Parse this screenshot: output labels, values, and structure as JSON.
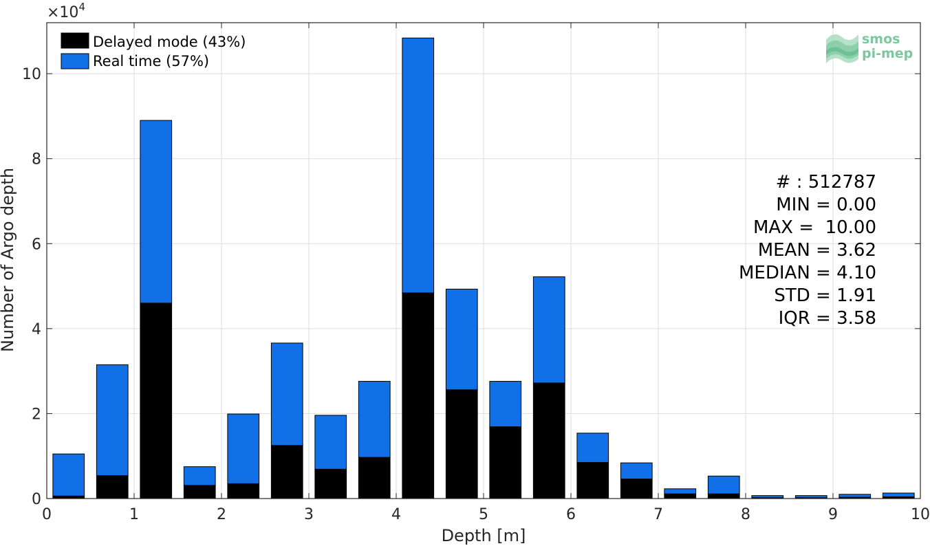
{
  "chart_data": {
    "type": "bar",
    "stacked": true,
    "xlabel": "Depth [m]",
    "ylabel": "Number of Argo depth",
    "xlim": [
      0,
      10
    ],
    "ylim": [
      0,
      11.2
    ],
    "y_multiplier": "×10",
    "y_multiplier_exp": "4",
    "x_ticks": [
      "0",
      "1",
      "2",
      "3",
      "4",
      "5",
      "6",
      "7",
      "8",
      "9",
      "10"
    ],
    "y_ticks": [
      "0",
      "2",
      "4",
      "6",
      "8",
      "10"
    ],
    "bin_width": 0.5,
    "bin_centers": [
      0.25,
      0.75,
      1.25,
      1.75,
      2.25,
      2.75,
      3.25,
      3.75,
      4.25,
      4.75,
      5.25,
      5.75,
      6.25,
      6.75,
      7.25,
      7.75,
      8.25,
      8.75,
      9.25,
      9.75
    ],
    "series": [
      {
        "name": "Delayed mode (43%)",
        "color": "#000000",
        "values": [
          0.06,
          0.54,
          4.6,
          0.31,
          0.35,
          1.25,
          0.69,
          0.97,
          4.84,
          2.56,
          1.69,
          2.72,
          0.85,
          0.46,
          0.11,
          0.11,
          0.02,
          0.02,
          0.03,
          0.04
        ]
      },
      {
        "name": "Real time (57%)",
        "color": "#1170e8",
        "values": [
          0.99,
          2.61,
          4.3,
          0.44,
          1.64,
          2.41,
          1.27,
          1.79,
          6.0,
          2.37,
          1.07,
          2.5,
          0.69,
          0.38,
          0.12,
          0.42,
          0.05,
          0.05,
          0.07,
          0.09
        ]
      }
    ],
    "grid": true,
    "legend_position": "top-left",
    "stats": [
      "# : 512787",
      "MIN = 0.00",
      "MAX =  10.00",
      "MEAN = 3.62",
      "MEDIAN = 4.10",
      "STD = 1.91",
      "IQR = 3.58"
    ]
  },
  "logo": {
    "line1": "smos",
    "line2": "pi-mep"
  },
  "colors": {
    "delayed": "#000000",
    "realtime": "#1170e8",
    "grid": "#dedede",
    "axis": "#262626"
  }
}
